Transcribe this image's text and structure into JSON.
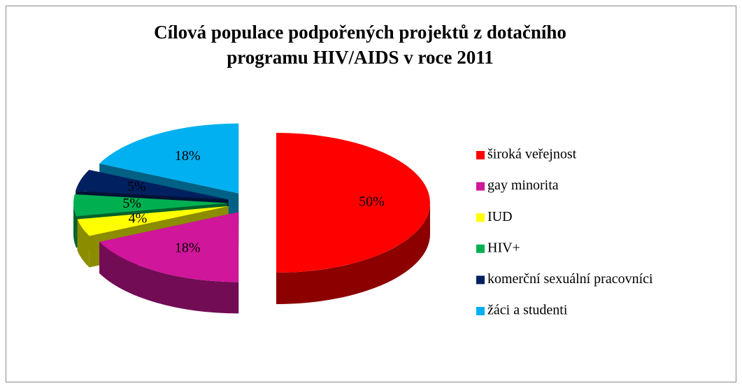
{
  "chart_data": {
    "type": "pie",
    "title": "Cílová populace podpořených projektů z dotačního programu HIV/AIDS v roce 2011",
    "categories": [
      "široká veřejnost",
      "gay minorita",
      "IUD",
      "HIV+",
      "komerční sexuální pracovníci",
      "žáci a studenti"
    ],
    "values": [
      50,
      18,
      4,
      5,
      5,
      18
    ],
    "value_labels": [
      "50%",
      "18%",
      "4%",
      "5%",
      "5%",
      "18%"
    ],
    "colors": [
      "#ff0000",
      "#d0169a",
      "#ffff00",
      "#00b050",
      "#002060",
      "#00b0f0"
    ],
    "legend": "right"
  }
}
